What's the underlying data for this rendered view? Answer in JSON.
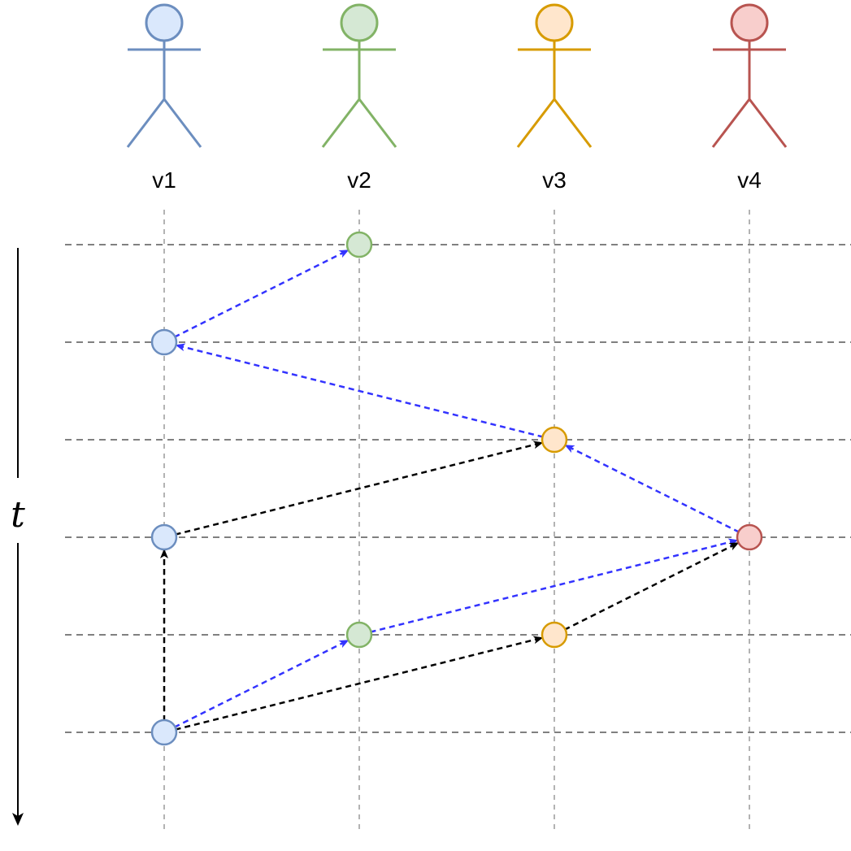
{
  "colors": {
    "v1": {
      "stroke": "#6c8ebf",
      "fill": "#dae8fc"
    },
    "v2": {
      "stroke": "#82b366",
      "fill": "#d5e8d4"
    },
    "v3": {
      "stroke": "#d79b00",
      "fill": "#ffe6cc"
    },
    "v4": {
      "stroke": "#b85450",
      "fill": "#f8cecc"
    },
    "grid": "#808080",
    "lifeline": "#b3b3b3",
    "blue_message": "#3333ff",
    "black_message": "#000000"
  },
  "actors": [
    {
      "id": "v1",
      "label": "v1"
    },
    {
      "id": "v2",
      "label": "v2"
    },
    {
      "id": "v3",
      "label": "v3"
    },
    {
      "id": "v4",
      "label": "v4"
    }
  ],
  "time_axis": {
    "label": "t",
    "direction": "down"
  },
  "time_steps": 6,
  "events": [
    {
      "actor": "v2",
      "step": 0
    },
    {
      "actor": "v1",
      "step": 1
    },
    {
      "actor": "v3",
      "step": 2
    },
    {
      "actor": "v1",
      "step": 3
    },
    {
      "actor": "v4",
      "step": 3
    },
    {
      "actor": "v2",
      "step": 4
    },
    {
      "actor": "v3",
      "step": 4
    },
    {
      "actor": "v1",
      "step": 5
    }
  ],
  "messages": [
    {
      "from": {
        "actor": "v1",
        "step": 1
      },
      "to": {
        "actor": "v2",
        "step": 0
      },
      "color": "blue"
    },
    {
      "from": {
        "actor": "v3",
        "step": 2
      },
      "to": {
        "actor": "v1",
        "step": 1
      },
      "color": "blue"
    },
    {
      "from": {
        "actor": "v4",
        "step": 3
      },
      "to": {
        "actor": "v3",
        "step": 2
      },
      "color": "blue"
    },
    {
      "from": {
        "actor": "v1",
        "step": 3
      },
      "to": {
        "actor": "v3",
        "step": 2
      },
      "color": "black"
    },
    {
      "from": {
        "actor": "v2",
        "step": 4
      },
      "to": {
        "actor": "v4",
        "step": 3
      },
      "color": "blue"
    },
    {
      "from": {
        "actor": "v3",
        "step": 4
      },
      "to": {
        "actor": "v4",
        "step": 3
      },
      "color": "black"
    },
    {
      "from": {
        "actor": "v1",
        "step": 5
      },
      "to": {
        "actor": "v1",
        "step": 3
      },
      "color": "black"
    },
    {
      "from": {
        "actor": "v1",
        "step": 5
      },
      "to": {
        "actor": "v2",
        "step": 4
      },
      "color": "blue"
    },
    {
      "from": {
        "actor": "v1",
        "step": 5
      },
      "to": {
        "actor": "v3",
        "step": 4
      },
      "color": "black"
    }
  ]
}
